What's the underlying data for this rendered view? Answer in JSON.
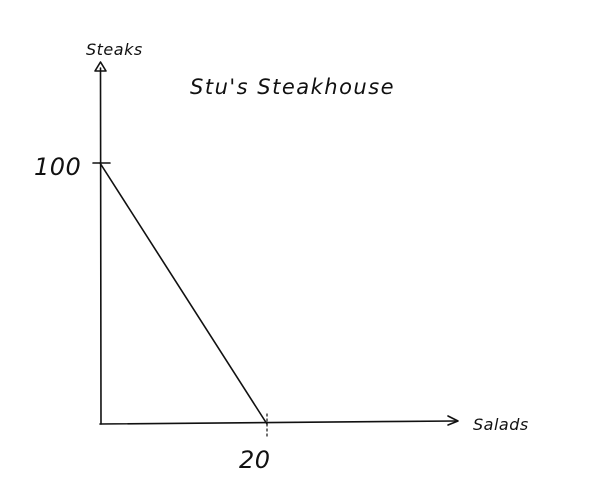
{
  "chart_data": {
    "type": "line",
    "title": "Stu's Steakhouse",
    "xlabel": "Salads",
    "ylabel": "Steaks",
    "xlim": [
      0,
      20
    ],
    "ylim": [
      0,
      100
    ],
    "x_ticks": [
      "20"
    ],
    "y_ticks": [
      "100"
    ],
    "grid": false,
    "series": [
      {
        "points": [
          {
            "x": 0,
            "y": 100
          },
          {
            "x": 20,
            "y": 0
          }
        ]
      }
    ]
  }
}
